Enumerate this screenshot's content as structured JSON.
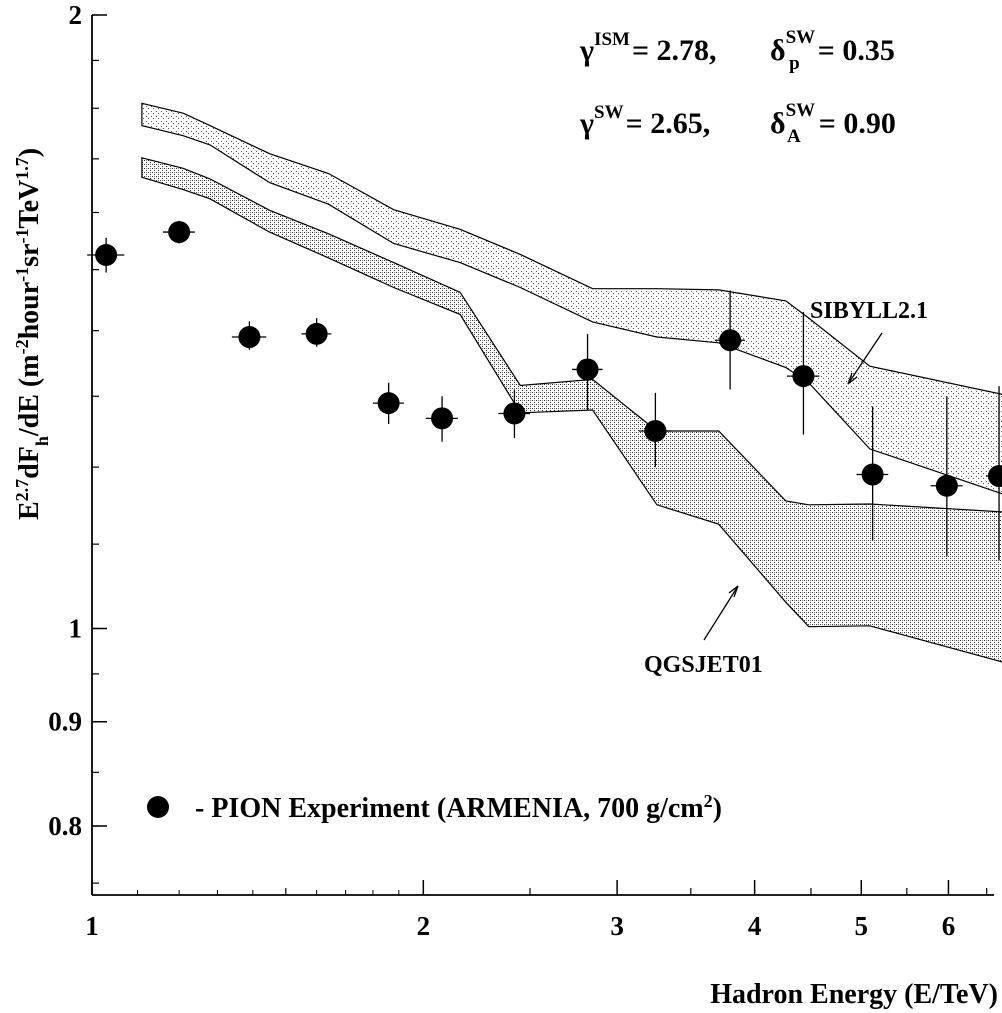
{
  "chart_data": {
    "type": "scatter",
    "title": "",
    "xlabel": "Hadron Energy (E/TeV)",
    "ylabel": {
      "main": "E",
      "exp1": "2.7",
      "mid": "dF",
      "sub": "h",
      "tail": "/dE  (m",
      "u1": "-2",
      "u2txt": "hour",
      "u2": "-1",
      "u3txt": "sr",
      "u3": "-1",
      "u4txt": "TeV",
      "u4": "1.7",
      "close": ")"
    },
    "x_scale": "log",
    "y_scale": "log",
    "xlim": [
      1,
      6.6
    ],
    "ylim": [
      0.74,
      2
    ],
    "x_ticks": [
      {
        "value": 1,
        "label": "1"
      },
      {
        "value": 2,
        "label": "2"
      },
      {
        "value": 3,
        "label": "3"
      },
      {
        "value": 4,
        "label": "4"
      },
      {
        "value": 5,
        "label": "5"
      },
      {
        "value": 6,
        "label": "6"
      }
    ],
    "y_ticks": [
      {
        "value": 0.8,
        "label": "0.8"
      },
      {
        "value": 0.9,
        "label": "0.9"
      },
      {
        "value": 1,
        "label": "1"
      },
      {
        "value": 2,
        "label": "2"
      }
    ],
    "parameters": [
      {
        "sym1": "γ",
        "sup1": "ISM",
        "val1": "= 2.78,",
        "sym2": "δ",
        "sup2": "SW",
        "sub2": "p",
        "val2": "= 0.35"
      },
      {
        "sym1": "γ",
        "sup1": "SW",
        "val1": "= 2.65,",
        "sym2": "δ",
        "sup2": "SW",
        "sub2": "A",
        "val2": "= 0.90"
      }
    ],
    "series": [
      {
        "name": "- PION Experiment (ARMENIA, 700 g/cm",
        "name_sup": "2",
        "name_close": ")",
        "marker": "filled-circle",
        "points": [
          {
            "x": 1.03,
            "y": 1.525,
            "x_err": 0.04,
            "y_lo": 1.495,
            "y_hi": 1.555
          },
          {
            "x": 1.2,
            "y": 1.565,
            "x_err": 0.04,
            "y_lo": 1.545,
            "y_hi": 1.585
          },
          {
            "x": 1.39,
            "y": 1.39,
            "x_err": 0.05,
            "y_lo": 1.37,
            "y_hi": 1.415
          },
          {
            "x": 1.6,
            "y": 1.395,
            "x_err": 0.05,
            "y_lo": 1.375,
            "y_hi": 1.42
          },
          {
            "x": 1.86,
            "y": 1.29,
            "x_err": 0.06,
            "y_lo": 1.26,
            "y_hi": 1.32
          },
          {
            "x": 2.08,
            "y": 1.268,
            "x_err": 0.07,
            "y_lo": 1.235,
            "y_hi": 1.3
          },
          {
            "x": 2.42,
            "y": 1.275,
            "x_err": 0.08,
            "y_lo": 1.24,
            "y_hi": 1.31
          },
          {
            "x": 2.82,
            "y": 1.34,
            "x_err": 0.09,
            "y_lo": 1.28,
            "y_hi": 1.395
          },
          {
            "x": 3.25,
            "y": 1.25,
            "x_err": 0.11,
            "y_lo": 1.2,
            "y_hi": 1.305
          },
          {
            "x": 3.8,
            "y": 1.385,
            "x_err": 0.12,
            "y_lo": 1.31,
            "y_hi": 1.465
          },
          {
            "x": 4.43,
            "y": 1.33,
            "x_err": 0.15,
            "y_lo": 1.245,
            "y_hi": 1.43
          },
          {
            "x": 5.12,
            "y": 1.19,
            "x_err": 0.17,
            "y_lo": 1.105,
            "y_hi": 1.285
          },
          {
            "x": 5.98,
            "y": 1.175,
            "x_err": 0.2,
            "y_lo": 1.085,
            "y_hi": 1.3
          },
          {
            "x": 6.67,
            "y": 1.188,
            "x_err": 0.18,
            "y_lo": 1.08,
            "y_hi": 1.315
          }
        ]
      }
    ],
    "bands": [
      {
        "name": "SIBYLL2.1",
        "fill": "light-dots",
        "x": [
          1.11,
          1.21,
          1.28,
          1.45,
          1.64,
          1.88,
          2.16,
          2.45,
          2.85,
          3.26,
          3.71,
          4.27,
          4.48,
          5.09,
          6.85
        ],
        "upper": [
          1.81,
          1.79,
          1.765,
          1.71,
          1.672,
          1.605,
          1.57,
          1.526,
          1.468,
          1.468,
          1.466,
          1.448,
          1.42,
          1.345,
          1.3
        ],
        "lower": [
          1.765,
          1.745,
          1.727,
          1.655,
          1.615,
          1.545,
          1.512,
          1.47,
          1.414,
          1.39,
          1.381,
          1.343,
          1.32,
          1.225,
          1.16
        ]
      },
      {
        "name": "QGSJET01",
        "fill": "dense-dots",
        "x": [
          1.11,
          1.21,
          1.28,
          1.45,
          1.64,
          1.88,
          2.16,
          2.45,
          2.85,
          3.26,
          3.71,
          4.27,
          4.48,
          5.09,
          6.85
        ],
        "upper": [
          1.702,
          1.682,
          1.662,
          1.604,
          1.562,
          1.512,
          1.462,
          1.316,
          1.325,
          1.25,
          1.25,
          1.155,
          1.15,
          1.151,
          1.14
        ],
        "lower": [
          1.665,
          1.642,
          1.625,
          1.565,
          1.52,
          1.47,
          1.426,
          1.276,
          1.28,
          1.15,
          1.125,
          1.03,
          1.002,
          1.003,
          0.96
        ]
      }
    ],
    "annotations": [
      {
        "text": "SIBYLL2.1",
        "target_x": 4.94,
        "target_y": 1.37
      },
      {
        "text": "QGSJET01",
        "target_x": 4.0,
        "target_y": 1.105
      }
    ],
    "grid": false,
    "legend_position": "lower-left"
  }
}
